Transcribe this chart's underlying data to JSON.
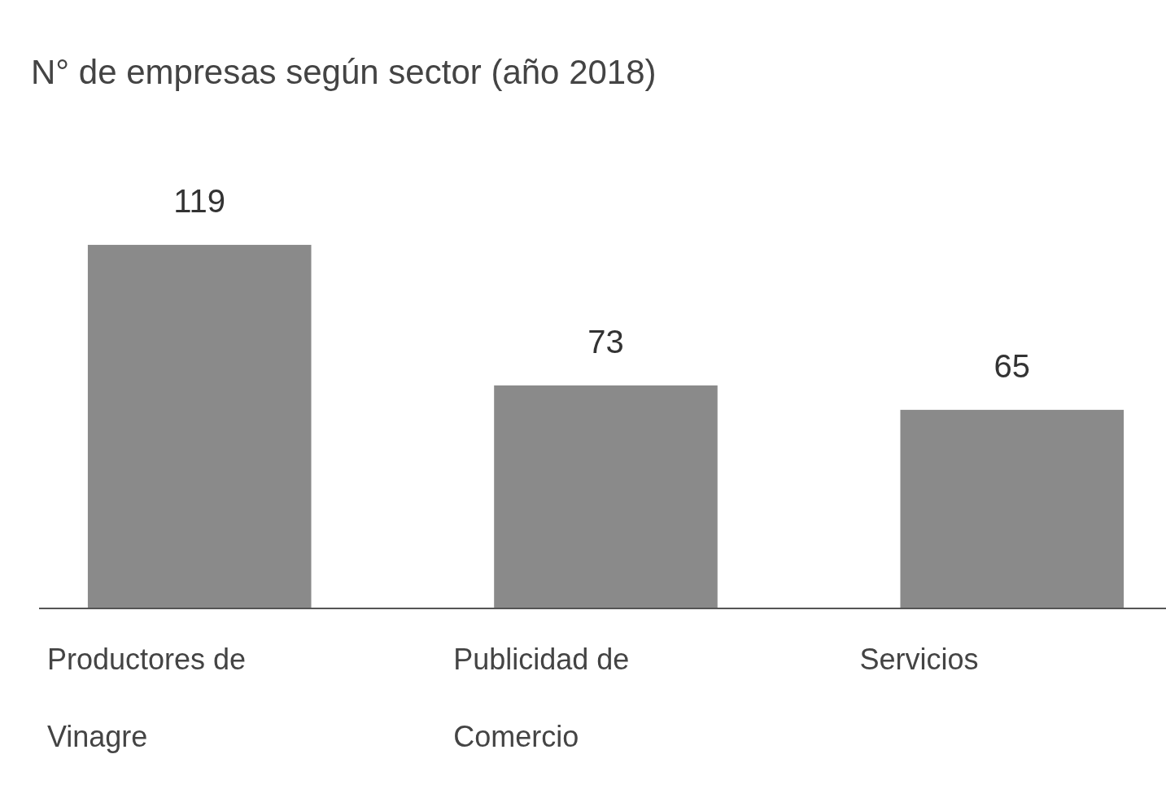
{
  "chart_data": {
    "type": "bar",
    "title": "N° de empresas según sector (año 2018)",
    "categories": [
      "Productores de Vinagre",
      "Publicidad de Comercio",
      "Servicios"
    ],
    "values": [
      119,
      73,
      65
    ],
    "color": "#8a8a8a",
    "data_labels": true
  }
}
